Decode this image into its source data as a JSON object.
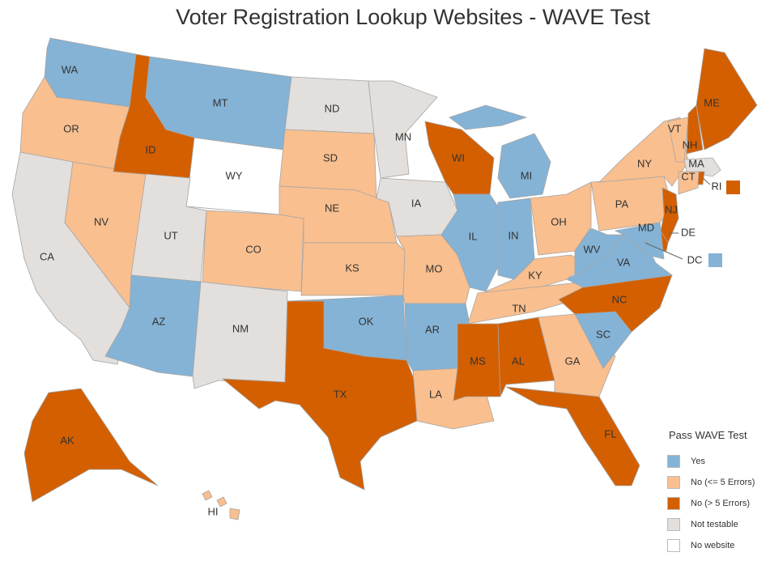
{
  "title": "Voter Registration Lookup Websites - WAVE Test",
  "legend": {
    "title": "Pass WAVE Test",
    "items": [
      {
        "key": "yes",
        "label": "Yes",
        "color": "#84b3d6"
      },
      {
        "key": "minor",
        "label": "No (<= 5 Errors)",
        "color": "#f9bf8f"
      },
      {
        "key": "major",
        "label": "No (> 5 Errors)",
        "color": "#d35f00"
      },
      {
        "key": "na",
        "label": "Not testable",
        "color": "#e2dfdc"
      },
      {
        "key": "none",
        "label": "No website",
        "color": "#ffffff"
      }
    ]
  },
  "states": [
    {
      "code": "WA",
      "status": "yes"
    },
    {
      "code": "OR",
      "status": "minor"
    },
    {
      "code": "CA",
      "status": "na"
    },
    {
      "code": "NV",
      "status": "minor"
    },
    {
      "code": "ID",
      "status": "major"
    },
    {
      "code": "MT",
      "status": "yes"
    },
    {
      "code": "WY",
      "status": "none"
    },
    {
      "code": "UT",
      "status": "na"
    },
    {
      "code": "CO",
      "status": "minor"
    },
    {
      "code": "AZ",
      "status": "yes"
    },
    {
      "code": "NM",
      "status": "na"
    },
    {
      "code": "ND",
      "status": "na"
    },
    {
      "code": "SD",
      "status": "minor"
    },
    {
      "code": "NE",
      "status": "minor"
    },
    {
      "code": "KS",
      "status": "minor"
    },
    {
      "code": "OK",
      "status": "yes"
    },
    {
      "code": "TX",
      "status": "major"
    },
    {
      "code": "MN",
      "status": "na"
    },
    {
      "code": "IA",
      "status": "na"
    },
    {
      "code": "MO",
      "status": "minor"
    },
    {
      "code": "AR",
      "status": "yes"
    },
    {
      "code": "LA",
      "status": "minor"
    },
    {
      "code": "WI",
      "status": "major"
    },
    {
      "code": "IL",
      "status": "yes"
    },
    {
      "code": "MI",
      "status": "yes"
    },
    {
      "code": "IN",
      "status": "yes"
    },
    {
      "code": "OH",
      "status": "minor"
    },
    {
      "code": "KY",
      "status": "minor"
    },
    {
      "code": "TN",
      "status": "minor"
    },
    {
      "code": "MS",
      "status": "major"
    },
    {
      "code": "AL",
      "status": "major"
    },
    {
      "code": "GA",
      "status": "minor"
    },
    {
      "code": "FL",
      "status": "major"
    },
    {
      "code": "SC",
      "status": "yes"
    },
    {
      "code": "NC",
      "status": "major"
    },
    {
      "code": "VA",
      "status": "yes"
    },
    {
      "code": "WV",
      "status": "yes"
    },
    {
      "code": "PA",
      "status": "minor"
    },
    {
      "code": "NY",
      "status": "minor"
    },
    {
      "code": "VT",
      "status": "minor"
    },
    {
      "code": "NH",
      "status": "major"
    },
    {
      "code": "ME",
      "status": "major"
    },
    {
      "code": "MA",
      "status": "na"
    },
    {
      "code": "CT",
      "status": "minor"
    },
    {
      "code": "RI",
      "status": "major"
    },
    {
      "code": "NJ",
      "status": "major"
    },
    {
      "code": "DE",
      "status": "major"
    },
    {
      "code": "MD",
      "status": "yes"
    },
    {
      "code": "DC",
      "status": "yes"
    },
    {
      "code": "AK",
      "status": "major"
    },
    {
      "code": "HI",
      "status": "minor"
    }
  ]
}
